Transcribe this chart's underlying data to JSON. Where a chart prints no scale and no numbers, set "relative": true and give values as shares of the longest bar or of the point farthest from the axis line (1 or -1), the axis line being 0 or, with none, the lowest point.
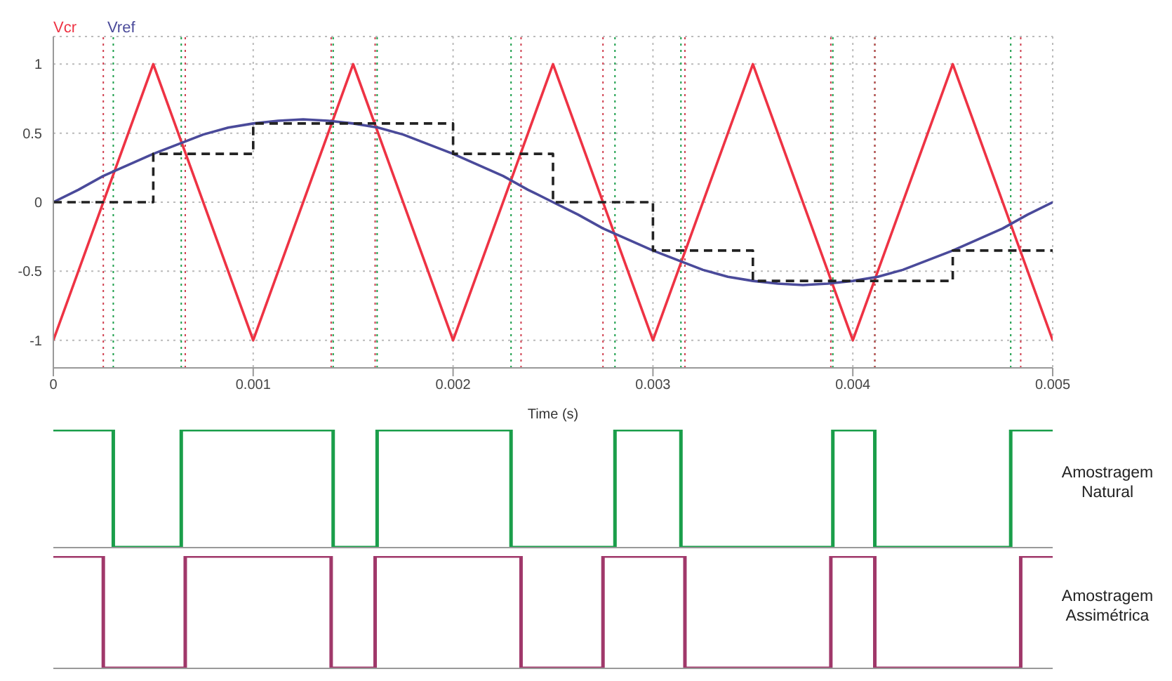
{
  "chart_data": [
    {
      "type": "line",
      "xlabel": "Time (s)",
      "xlim": [
        0,
        0.005
      ],
      "xticks": [
        0,
        0.001,
        0.002,
        0.003,
        0.004,
        0.005
      ],
      "ylim": [
        -1.2,
        1.2
      ],
      "yticks": [
        -1,
        -0.5,
        0,
        0.5,
        1
      ],
      "grid": true,
      "legend": "top left",
      "series": [
        {
          "name": "Vcr",
          "color": "#ee3344",
          "x": [
            0,
            0.0005,
            0.001,
            0.0015,
            0.002,
            0.0025,
            0.003,
            0.0035,
            0.004,
            0.0045,
            0.005
          ],
          "values": [
            -1,
            1,
            -1,
            1,
            -1,
            1,
            -1,
            1,
            -1,
            1,
            -1
          ]
        },
        {
          "name": "Vref",
          "color": "#4a4a9a",
          "x": [
            0,
            0.000125,
            0.00025,
            0.000375,
            0.0005,
            0.000625,
            0.00075,
            0.000875,
            0.001,
            0.001125,
            0.00125,
            0.001375,
            0.0015,
            0.001625,
            0.00175,
            0.001875,
            0.002,
            0.002125,
            0.00225,
            0.002375,
            0.0025,
            0.002625,
            0.00275,
            0.002875,
            0.003,
            0.003125,
            0.00325,
            0.003375,
            0.0035,
            0.003625,
            0.00375,
            0.003875,
            0.004,
            0.004125,
            0.00425,
            0.004375,
            0.0045,
            0.004625,
            0.00475,
            0.004875,
            0.005
          ],
          "values": [
            0,
            0.09,
            0.19,
            0.27,
            0.35,
            0.42,
            0.49,
            0.54,
            0.57,
            0.59,
            0.6,
            0.59,
            0.57,
            0.54,
            0.49,
            0.42,
            0.35,
            0.27,
            0.19,
            0.09,
            0,
            -0.09,
            -0.19,
            -0.27,
            -0.35,
            -0.42,
            -0.49,
            -0.54,
            -0.57,
            -0.59,
            -0.6,
            -0.59,
            -0.57,
            -0.54,
            -0.49,
            -0.42,
            -0.35,
            -0.27,
            -0.19,
            -0.09,
            0
          ]
        },
        {
          "type": "step",
          "color": "#222222",
          "line_style": "dashed",
          "x": [
            0,
            0.0005,
            0.001,
            0.002,
            0.0025,
            0.003,
            0.0035,
            0.0045,
            0.005
          ],
          "values": [
            0,
            0.35,
            0.57,
            0.35,
            0,
            -0.35,
            -0.57,
            -0.35,
            -0.35
          ]
        }
      ],
      "ref_lines": [
        {
          "axis": "x",
          "value": 0.0003,
          "color": "#1a9e4a",
          "line_style": "dotted"
        },
        {
          "axis": "x",
          "value": 0.00064,
          "color": "#1a9e4a",
          "line_style": "dotted"
        },
        {
          "axis": "x",
          "value": 0.0014,
          "color": "#1a9e4a",
          "line_style": "dotted"
        },
        {
          "axis": "x",
          "value": 0.00162,
          "color": "#1a9e4a",
          "line_style": "dotted"
        },
        {
          "axis": "x",
          "value": 0.00229,
          "color": "#1a9e4a",
          "line_style": "dotted"
        },
        {
          "axis": "x",
          "value": 0.00281,
          "color": "#1a9e4a",
          "line_style": "dotted"
        },
        {
          "axis": "x",
          "value": 0.00314,
          "color": "#1a9e4a",
          "line_style": "dotted"
        },
        {
          "axis": "x",
          "value": 0.0039,
          "color": "#1a9e4a",
          "line_style": "dotted"
        },
        {
          "axis": "x",
          "value": 0.00411,
          "color": "#1a9e4a",
          "line_style": "dotted"
        },
        {
          "axis": "x",
          "value": 0.00479,
          "color": "#1a9e4a",
          "line_style": "dotted"
        },
        {
          "axis": "x",
          "value": 0.00025,
          "color": "#d04050",
          "line_style": "dotted"
        },
        {
          "axis": "x",
          "value": 0.00066,
          "color": "#d04050",
          "line_style": "dotted"
        },
        {
          "axis": "x",
          "value": 0.00139,
          "color": "#d04050",
          "line_style": "dotted"
        },
        {
          "axis": "x",
          "value": 0.00161,
          "color": "#d04050",
          "line_style": "dotted"
        },
        {
          "axis": "x",
          "value": 0.00234,
          "color": "#d04050",
          "line_style": "dotted"
        },
        {
          "axis": "x",
          "value": 0.00275,
          "color": "#d04050",
          "line_style": "dotted"
        },
        {
          "axis": "x",
          "value": 0.00316,
          "color": "#d04050",
          "line_style": "dotted"
        },
        {
          "axis": "x",
          "value": 0.00389,
          "color": "#d04050",
          "line_style": "dotted"
        },
        {
          "axis": "x",
          "value": 0.00411,
          "color": "#d04050",
          "line_style": "dotted"
        },
        {
          "axis": "x",
          "value": 0.00484,
          "color": "#d04050",
          "line_style": "dotted"
        }
      ]
    },
    {
      "type": "step",
      "ylabel": "Amostragem Natural",
      "relative": true,
      "tick_labels": false,
      "xlim": [
        0,
        0.005
      ],
      "series": [
        {
          "color": "#1a9e4a",
          "x": [
            0,
            0.0003,
            0.00064,
            0.0014,
            0.00162,
            0.00229,
            0.00281,
            0.00314,
            0.0039,
            0.00411,
            0.00479,
            0.005
          ],
          "values": [
            1,
            0,
            1,
            0,
            1,
            0,
            1,
            0,
            1,
            0,
            1,
            1
          ]
        }
      ]
    },
    {
      "type": "step",
      "ylabel": "Amostragem Assimétrica",
      "relative": true,
      "tick_labels": false,
      "xlim": [
        0,
        0.005
      ],
      "series": [
        {
          "color": "#a0386a",
          "x": [
            0,
            0.00025,
            0.00066,
            0.00139,
            0.00161,
            0.00234,
            0.00275,
            0.00316,
            0.00389,
            0.00411,
            0.00484,
            0.005
          ],
          "values": [
            1,
            0,
            1,
            0,
            1,
            0,
            1,
            0,
            1,
            0,
            1,
            1
          ]
        }
      ]
    }
  ]
}
